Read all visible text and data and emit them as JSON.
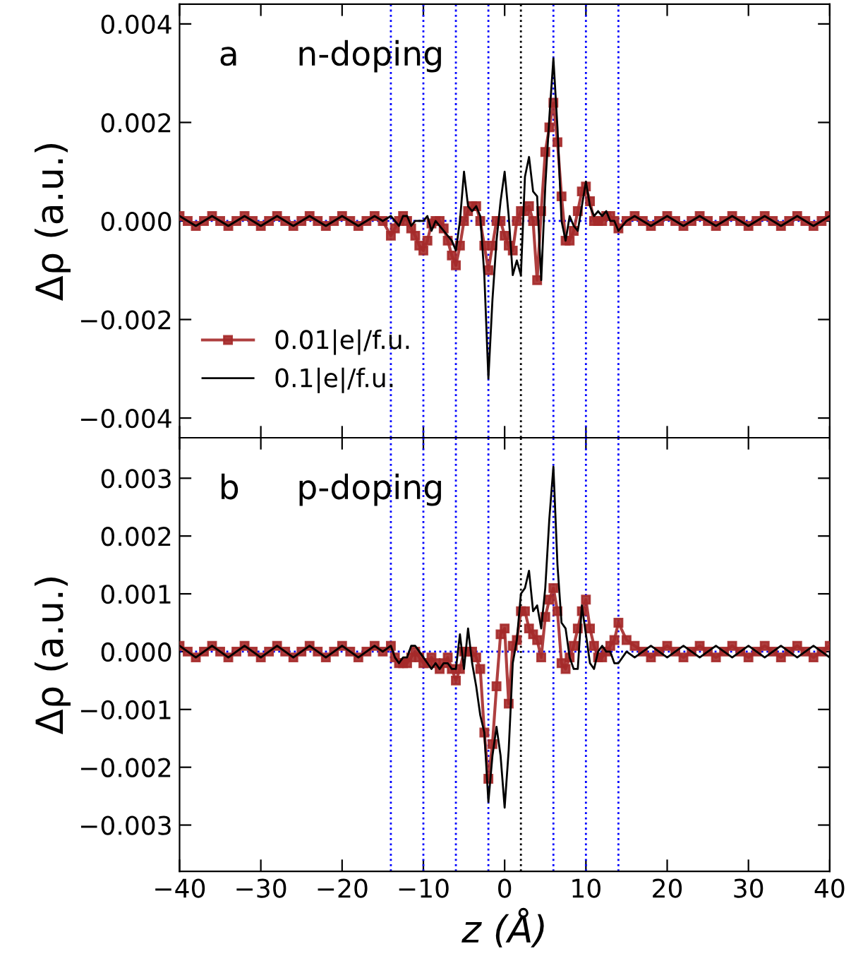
{
  "chart_data": [
    {
      "type": "line",
      "annotations": [
        "a",
        "n-doping"
      ],
      "ylabel": "Δρ (a.u.)",
      "xlim": [
        -40,
        40
      ],
      "xticks": [
        -40,
        -30,
        -20,
        -10,
        0,
        10,
        20,
        30,
        40
      ],
      "ylim": [
        -0.0044,
        0.0044
      ],
      "yticks": [
        {
          "value": -0.004,
          "label": "−0.004"
        },
        {
          "value": -0.002,
          "label": "−0.002"
        },
        {
          "value": 0,
          "label": "0.000"
        },
        {
          "value": 0.002,
          "label": "0.002"
        },
        {
          "value": 0.004,
          "label": "0.004"
        }
      ],
      "tick_labels": "y",
      "legend": "bottom left",
      "ref_lines": [
        {
          "axis": "y",
          "value": 0,
          "color": "#0000ff",
          "line_style": "dotted"
        },
        {
          "axis": "x",
          "value": -14,
          "color": "#0000ff",
          "line_style": "dotted"
        },
        {
          "axis": "x",
          "value": -10,
          "color": "#0000ff",
          "line_style": "dotted"
        },
        {
          "axis": "x",
          "value": -6,
          "color": "#0000ff",
          "line_style": "dotted"
        },
        {
          "axis": "x",
          "value": -2,
          "color": "#0000ff",
          "line_style": "dotted"
        },
        {
          "axis": "x",
          "value": 2,
          "color": "#000000",
          "line_style": "dotted"
        },
        {
          "axis": "x",
          "value": 6,
          "color": "#0000ff",
          "line_style": "dotted"
        },
        {
          "axis": "x",
          "value": 10,
          "color": "#0000ff",
          "line_style": "dotted"
        },
        {
          "axis": "x",
          "value": 14,
          "color": "#0000ff",
          "line_style": "dotted"
        }
      ],
      "series": [
        {
          "name": "0.01|e|/f.u.",
          "color": "#a52a2a",
          "marker": "square",
          "x": [
            -40,
            -39,
            -38,
            -37,
            -36,
            -35,
            -34,
            -33,
            -32,
            -31,
            -30,
            -29,
            -28,
            -27,
            -26,
            -25,
            -24,
            -23,
            -22,
            -21,
            -20,
            -19,
            -18,
            -17,
            -16,
            -15,
            -14,
            -13.5,
            -13,
            -12.5,
            -12,
            -11.5,
            -11,
            -10.5,
            -10,
            -9.5,
            -9,
            -8.5,
            -8,
            -7.5,
            -7,
            -6.5,
            -6,
            -5.5,
            -5,
            -4.5,
            -4,
            -3.5,
            -3,
            -2.5,
            -2,
            -1.5,
            -1,
            -0.5,
            0,
            0.5,
            1,
            1.5,
            2,
            2.5,
            3,
            3.5,
            4,
            4.5,
            5,
            5.5,
            6,
            6.5,
            7,
            7.5,
            8,
            8.5,
            9,
            9.5,
            10,
            10.5,
            11,
            11.5,
            12,
            12.5,
            13,
            13.5,
            14,
            15,
            16,
            17,
            18,
            19,
            20,
            21,
            22,
            23,
            24,
            25,
            26,
            27,
            28,
            29,
            30,
            31,
            32,
            33,
            34,
            35,
            36,
            37,
            38,
            39,
            40
          ],
          "values": [
            0.0001,
            0,
            -0.0001,
            0,
            0.0001,
            0,
            -0.0001,
            0,
            0.0001,
            0,
            -0.0001,
            0,
            0.0001,
            0,
            -0.0001,
            0,
            0.0001,
            0,
            -0.0001,
            0,
            0.0001,
            0,
            -0.0001,
            0,
            0.0001,
            0,
            -0.0003,
            -0.00015,
            0,
            0.0001,
            0,
            -0.00015,
            -0.0003,
            -0.0005,
            -0.0006,
            -0.0004,
            -5e-05,
            0,
            0,
            -0.00015,
            -0.0004,
            -0.0007,
            -0.0009,
            -0.0005,
            0,
            0.0002,
            0.0003,
            0.0003,
            0,
            -0.0005,
            -0.001,
            -0.0005,
            0,
            0,
            -0.0003,
            -0.0005,
            -0.0006,
            0,
            0.0002,
            0.0002,
            0.0003,
            0,
            -0.0012,
            0.0002,
            0.0014,
            0.0019,
            0.0024,
            0.0016,
            0.0005,
            -0.0004,
            -0.0004,
            -0.0002,
            0.0002,
            0.0006,
            0.0007,
            0.0004,
            0,
            0,
            0,
            0.0001,
            0.0001,
            0,
            -0.00015,
            0,
            0.0001,
            0,
            -0.0001,
            0,
            0.0001,
            0,
            -0.0001,
            0,
            0.0001,
            0,
            -0.0001,
            0,
            0.0001,
            0,
            -0.0001,
            0,
            0.0001,
            0,
            -0.0001,
            0,
            0.0001,
            0,
            -0.0001,
            0,
            0.0001
          ]
        },
        {
          "name": "0.1|e|/f.u.",
          "color": "#000000",
          "marker": "none",
          "x": [
            -40,
            -39,
            -38,
            -37,
            -36,
            -35,
            -34,
            -33,
            -32,
            -31,
            -30,
            -29,
            -28,
            -27,
            -26,
            -25,
            -24,
            -23,
            -22,
            -21,
            -20,
            -19,
            -18,
            -17,
            -16,
            -15,
            -14,
            -13.5,
            -13,
            -12.5,
            -12,
            -11.5,
            -11,
            -10.5,
            -10,
            -9.5,
            -9,
            -8.5,
            -8,
            -7.5,
            -7,
            -6.5,
            -6,
            -5.5,
            -5,
            -4.5,
            -4,
            -3.5,
            -3,
            -2.5,
            -2,
            -1.5,
            -1,
            -0.5,
            0,
            0.5,
            1,
            1.5,
            2,
            2.5,
            3,
            3.5,
            4,
            4.5,
            5,
            5.5,
            6,
            6.5,
            7,
            7.5,
            8,
            8.5,
            9,
            9.5,
            10,
            10.5,
            11,
            11.5,
            12,
            12.5,
            13,
            13.5,
            14,
            15,
            16,
            17,
            18,
            19,
            20,
            21,
            22,
            23,
            24,
            25,
            26,
            27,
            28,
            29,
            30,
            31,
            32,
            33,
            34,
            35,
            36,
            37,
            38,
            39,
            40
          ],
          "values": [
            0.0001,
            0,
            -0.0001,
            0,
            0.0001,
            0,
            -0.0001,
            0,
            0.0001,
            0,
            -0.0001,
            0,
            0.0001,
            0,
            -0.0001,
            0,
            0.0001,
            0,
            -0.0001,
            0,
            0.0001,
            0,
            -0.0001,
            0,
            0.0001,
            0,
            0.0001,
            0,
            -0.0001,
            0.0001,
            0.0001,
            -0.0001,
            0,
            0,
            0,
            0.0001,
            -0.0002,
            0,
            -0.0001,
            -0.0002,
            -0.0003,
            -0.0004,
            -0.0006,
            0,
            0.001,
            0.0003,
            0.0002,
            0.0003,
            0.0001,
            -0.0011,
            -0.0032,
            -0.0016,
            -0.0004,
            0.0004,
            0.001,
            0.0001,
            -0.0011,
            -0.0008,
            -0.0011,
            0.0009,
            0.0013,
            0.0006,
            0.0005,
            -0.0012,
            0.0007,
            0.0021,
            0.0033,
            0.0019,
            0,
            -0.0004,
            0.0001,
            -0.0001,
            -0.0002,
            0.0003,
            0.0008,
            0.0003,
            0.0001,
            0.0002,
            0.0001,
            0.0002,
            0,
            0,
            -0.0002,
            0,
            0.0001,
            0,
            -0.0001,
            0,
            0.0001,
            0,
            -0.0001,
            0,
            0.0001,
            0,
            -0.0001,
            0,
            0.0001,
            0,
            -0.0001,
            0,
            0.0001,
            0,
            -0.0001,
            0,
            0.0001,
            0,
            -0.0001,
            0,
            0.0001
          ]
        }
      ]
    },
    {
      "type": "line",
      "annotations": [
        "b",
        "p-doping"
      ],
      "xlabel": "z (Å)",
      "ylabel": "Δρ (a.u.)",
      "xlim": [
        -40,
        40
      ],
      "xticks": [
        {
          "value": -40,
          "label": "−40"
        },
        {
          "value": -30,
          "label": "−30"
        },
        {
          "value": -20,
          "label": "−20"
        },
        {
          "value": -10,
          "label": "−10"
        },
        0,
        10,
        20,
        30,
        40
      ],
      "ylim": [
        -0.0038,
        0.0037
      ],
      "yticks": [
        {
          "value": -0.003,
          "label": "−0.003"
        },
        {
          "value": -0.002,
          "label": "−0.002"
        },
        {
          "value": -0.001,
          "label": "−0.001"
        },
        {
          "value": 0,
          "label": "0.000"
        },
        {
          "value": 0.001,
          "label": "0.001"
        },
        {
          "value": 0.002,
          "label": "0.002"
        },
        {
          "value": 0.003,
          "label": "0.003"
        }
      ],
      "ref_lines": [
        {
          "axis": "y",
          "value": 0,
          "color": "#0000ff",
          "line_style": "dotted"
        },
        {
          "axis": "x",
          "value": -14,
          "color": "#0000ff",
          "line_style": "dotted"
        },
        {
          "axis": "x",
          "value": -10,
          "color": "#0000ff",
          "line_style": "dotted"
        },
        {
          "axis": "x",
          "value": -6,
          "color": "#0000ff",
          "line_style": "dotted"
        },
        {
          "axis": "x",
          "value": -2,
          "color": "#0000ff",
          "line_style": "dotted"
        },
        {
          "axis": "x",
          "value": 2,
          "color": "#000000",
          "line_style": "dotted"
        },
        {
          "axis": "x",
          "value": 6,
          "color": "#0000ff",
          "line_style": "dotted"
        },
        {
          "axis": "x",
          "value": 10,
          "color": "#0000ff",
          "line_style": "dotted"
        },
        {
          "axis": "x",
          "value": 14,
          "color": "#0000ff",
          "line_style": "dotted"
        }
      ],
      "series": [
        {
          "color": "#a52a2a",
          "marker": "square",
          "x": [
            -40,
            -39,
            -38,
            -37,
            -36,
            -35,
            -34,
            -33,
            -32,
            -31,
            -30,
            -29,
            -28,
            -27,
            -26,
            -25,
            -24,
            -23,
            -22,
            -21,
            -20,
            -19,
            -18,
            -17,
            -16,
            -15,
            -14,
            -13.5,
            -13,
            -12.5,
            -12,
            -11.5,
            -11,
            -10.5,
            -10,
            -9.5,
            -9,
            -8.5,
            -8,
            -7.5,
            -7,
            -6.5,
            -6,
            -5.5,
            -5,
            -4.5,
            -4,
            -3.5,
            -3,
            -2.5,
            -2,
            -1.5,
            -1,
            -0.5,
            0,
            0.5,
            1,
            1.5,
            2,
            2.5,
            3,
            3.5,
            4,
            4.5,
            5,
            5.5,
            6,
            6.5,
            7,
            7.5,
            8,
            8.5,
            9,
            9.5,
            10,
            10.5,
            11,
            11.5,
            12,
            12.5,
            13,
            13.5,
            14,
            15,
            16,
            17,
            18,
            19,
            20,
            21,
            22,
            23,
            24,
            25,
            26,
            27,
            28,
            29,
            30,
            31,
            32,
            33,
            34,
            35,
            36,
            37,
            38,
            39,
            40
          ],
          "values": [
            0.0001,
            0,
            -0.0001,
            0,
            0.0001,
            0,
            -0.0001,
            0,
            0.0001,
            0,
            -0.0001,
            0,
            0.0001,
            0,
            -0.0001,
            0,
            0.0001,
            0,
            -0.0001,
            0,
            0.0001,
            0,
            -0.0001,
            0,
            0.0001,
            0,
            0.0001,
            -0.0001,
            -0.0002,
            -0.0002,
            -0.0002,
            -0.0001,
            0,
            -0.0001,
            -0.0002,
            -0.0002,
            -0.0001,
            -0.0002,
            -0.0003,
            -0.0002,
            -0.0001,
            -0.0003,
            -0.0005,
            -0.0003,
            0,
            0,
            0,
            -0.0001,
            -0.0003,
            -0.0014,
            -0.0022,
            -0.0016,
            -0.0006,
            0.0003,
            0.0004,
            -0.0009,
            0.0001,
            0.0002,
            0.0007,
            0.0007,
            0.0004,
            0.0003,
            0.0002,
            -0.0001,
            0.0006,
            0.0009,
            0.0011,
            0.0007,
            -0.0002,
            -0.0003,
            -0.0001,
            0.0001,
            0.0004,
            0.0007,
            0.0009,
            0.0004,
            0.0001,
            -0.0001,
            -0.0001,
            0,
            0.0001,
            0.0002,
            0.0005,
            0.0002,
            0.0001,
            0,
            -0.0001,
            0,
            0.0001,
            0,
            -0.0001,
            0,
            0.0001,
            0,
            -0.0001,
            0,
            0.0001,
            0,
            -0.0001,
            0,
            0.0001,
            0,
            -0.0001,
            0,
            0.0001,
            0,
            -0.0001,
            0,
            0.0001
          ]
        },
        {
          "color": "#000000",
          "marker": "none",
          "x": [
            -40,
            -39,
            -38,
            -37,
            -36,
            -35,
            -34,
            -33,
            -32,
            -31,
            -30,
            -29,
            -28,
            -27,
            -26,
            -25,
            -24,
            -23,
            -22,
            -21,
            -20,
            -19,
            -18,
            -17,
            -16,
            -15,
            -14,
            -13.5,
            -13,
            -12.5,
            -12,
            -11.5,
            -11,
            -10.5,
            -10,
            -9.5,
            -9,
            -8.5,
            -8,
            -7.5,
            -7,
            -6.5,
            -6,
            -5.5,
            -5,
            -4.5,
            -4,
            -3.5,
            -3,
            -2.5,
            -2,
            -1.5,
            -1,
            -0.5,
            0,
            0.5,
            1,
            1.5,
            2,
            2.5,
            3,
            3.5,
            4,
            4.5,
            5,
            5.5,
            6,
            6.5,
            7,
            7.5,
            8,
            8.5,
            9,
            9.5,
            10,
            10.5,
            11,
            11.5,
            12,
            12.5,
            13,
            13.5,
            14,
            15,
            16,
            17,
            18,
            19,
            20,
            21,
            22,
            23,
            24,
            25,
            26,
            27,
            28,
            29,
            30,
            31,
            32,
            33,
            34,
            35,
            36,
            37,
            38,
            39,
            40
          ],
          "values": [
            0.0001,
            0,
            -0.0001,
            0,
            0.0001,
            0,
            -0.0001,
            0,
            0.0001,
            0,
            -0.0001,
            0,
            0.0001,
            0,
            -0.0001,
            0,
            0.0001,
            0,
            -0.0001,
            0,
            0.0001,
            0,
            -0.0001,
            0,
            0.0001,
            0,
            0.0001,
            -0.0001,
            -0.0002,
            -0.0001,
            -0.0001,
            0.0001,
            0.0001,
            0,
            -0.0001,
            -0.0002,
            -0.0003,
            -0.0002,
            -0.0003,
            -0.0002,
            -0.0002,
            -0.0003,
            -0.0003,
            0.0003,
            -0.0003,
            0.0004,
            -0.0002,
            -0.0006,
            -0.0011,
            -0.0014,
            -0.0026,
            -0.0018,
            -0.0013,
            -0.0018,
            -0.0027,
            -0.0017,
            -0.0002,
            0.0002,
            0.001,
            0.0011,
            0.0014,
            0.0007,
            0.0008,
            0.0004,
            0.0011,
            0.0023,
            0.0032,
            0.0015,
            0.0005,
            0.0004,
            -0.0001,
            -0.0003,
            -0.0003,
            0.0008,
            0.0003,
            -0.0002,
            -0.0003,
            0,
            0.0001,
            0,
            0,
            -0.0002,
            -0.0002,
            0,
            -0.0001,
            0,
            0.0001,
            0,
            -0.0001,
            0,
            0.0001,
            0,
            -0.0001,
            0,
            0.0001,
            0,
            -0.0001,
            0,
            0.0001,
            0,
            -0.0001,
            0,
            0.0001,
            0,
            -0.0001,
            0,
            0.0001,
            0,
            -0.0001
          ]
        }
      ]
    }
  ]
}
